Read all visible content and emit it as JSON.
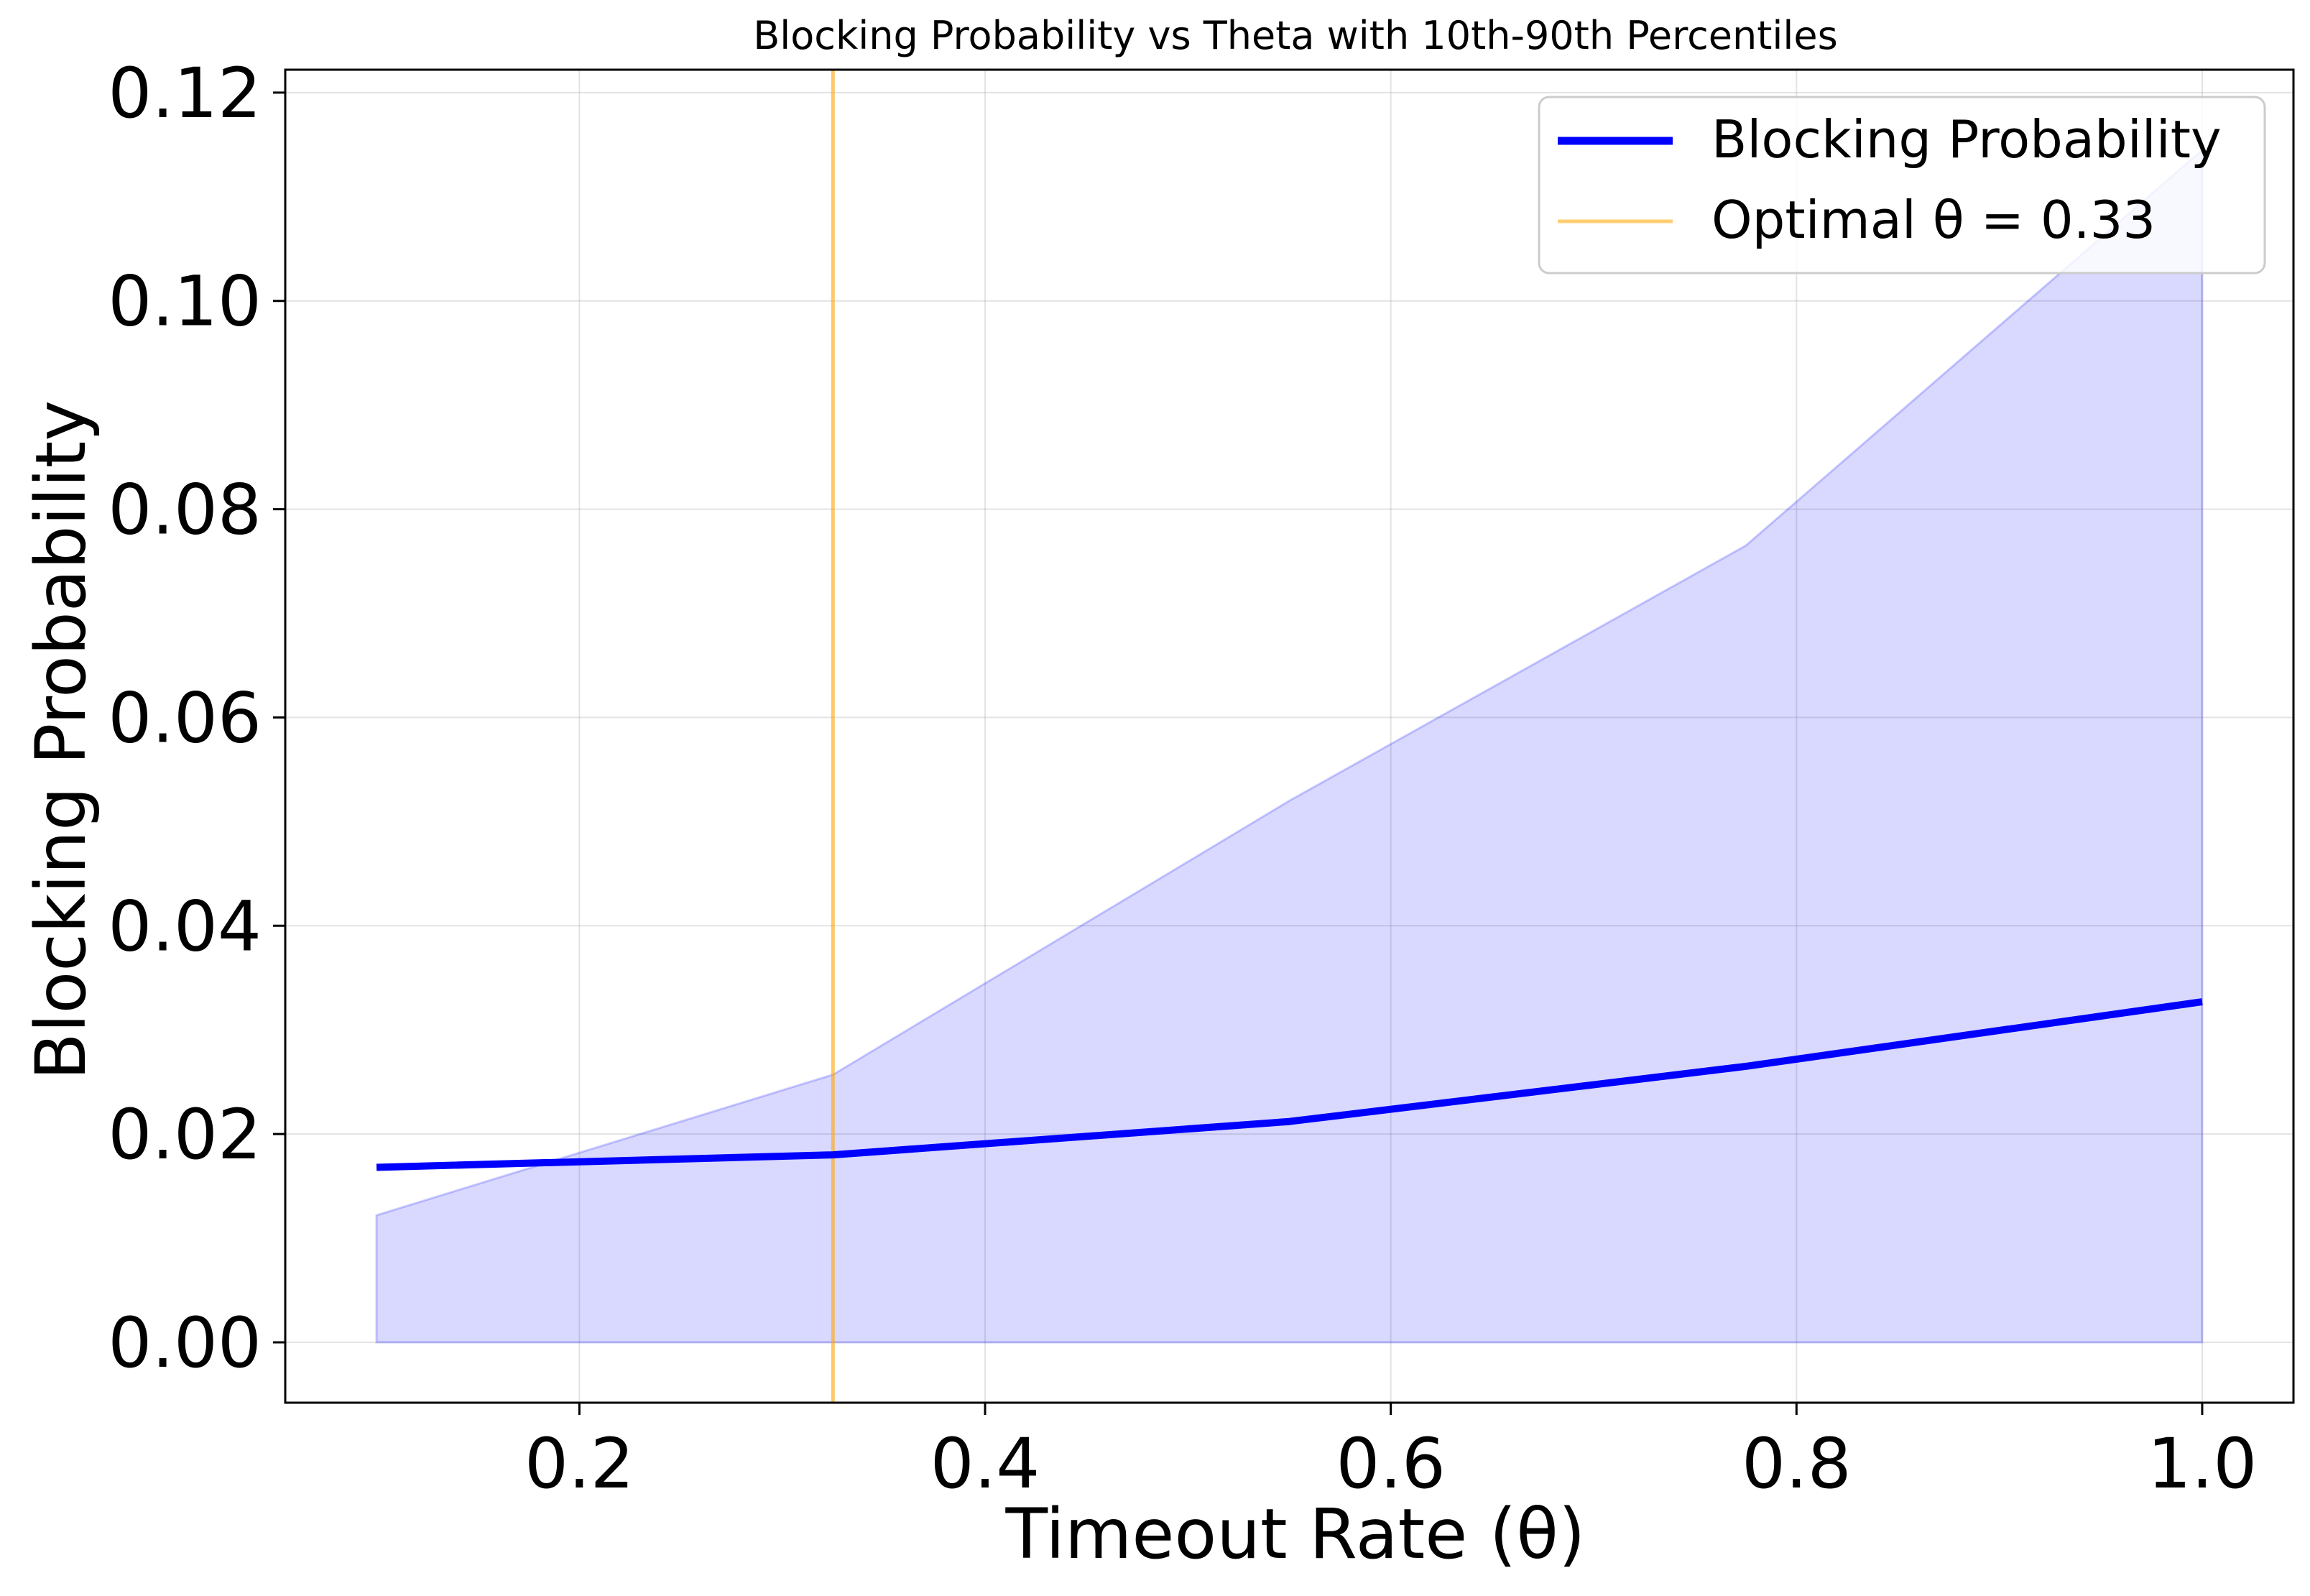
{
  "chart_data": {
    "type": "line",
    "title": "Blocking Probability vs Theta with 10th-90th Percentiles",
    "xlabel": "Timeout Rate (θ)",
    "ylabel": "Blocking Probability",
    "xlim": [
      0.055,
      1.045
    ],
    "ylim": [
      -0.0058,
      0.1222
    ],
    "xticks": [
      0.2,
      0.4,
      0.6,
      0.8,
      1.0
    ],
    "xtick_labels": [
      "0.2",
      "0.4",
      "0.6",
      "0.8",
      "1.0"
    ],
    "yticks": [
      0.0,
      0.02,
      0.04,
      0.06,
      0.08,
      0.1,
      0.12
    ],
    "ytick_labels": [
      "0.00",
      "0.02",
      "0.04",
      "0.06",
      "0.08",
      "0.10",
      "0.12"
    ],
    "grid": true,
    "legend_position": "top-right",
    "x": [
      0.1,
      0.325,
      0.55,
      0.775,
      1.0
    ],
    "series": [
      {
        "name": "Blocking Probability",
        "values": [
          0.0168,
          0.018,
          0.0212,
          0.0265,
          0.0327
        ],
        "color": "#0000ff"
      }
    ],
    "band": {
      "lower": [
        0.0,
        0.0,
        0.0,
        0.0,
        0.0
      ],
      "upper": [
        0.0122,
        0.0257,
        0.052,
        0.0765,
        0.1145
      ],
      "color": "#0000ff"
    },
    "vline": {
      "x": 0.325,
      "label": "Optimal θ = 0.33",
      "color": "#ffa500"
    }
  }
}
